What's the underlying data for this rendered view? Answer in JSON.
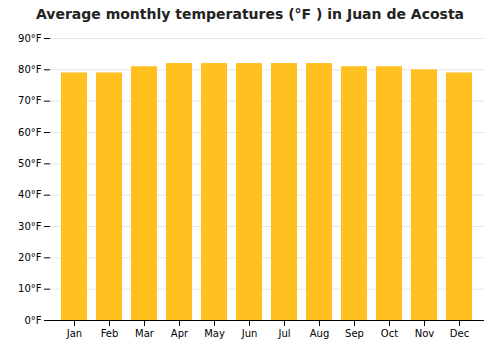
{
  "chart_data": {
    "type": "bar",
    "title": "Average monthly temperatures (°F ) in Juan de Acosta",
    "categories": [
      "Jan",
      "Feb",
      "Mar",
      "Apr",
      "May",
      "Jun",
      "Jul",
      "Aug",
      "Sep",
      "Oct",
      "Nov",
      "Dec"
    ],
    "values": [
      79,
      79,
      81,
      82,
      82,
      82,
      82,
      82,
      81,
      81,
      80,
      79
    ],
    "color": "#FFC020",
    "ylim": [
      0,
      90
    ],
    "yticks": [
      {
        "value": 0,
        "label": "0°F"
      },
      {
        "value": 10,
        "label": "10°F"
      },
      {
        "value": 20,
        "label": "20°F"
      },
      {
        "value": 30,
        "label": "30°F"
      },
      {
        "value": 40,
        "label": "40°F"
      },
      {
        "value": 50,
        "label": "50°F"
      },
      {
        "value": 60,
        "label": "60°F"
      },
      {
        "value": 70,
        "label": "70°F"
      },
      {
        "value": 80,
        "label": "80°F"
      },
      {
        "value": 90,
        "label": "90°F"
      }
    ],
    "grid": true
  }
}
